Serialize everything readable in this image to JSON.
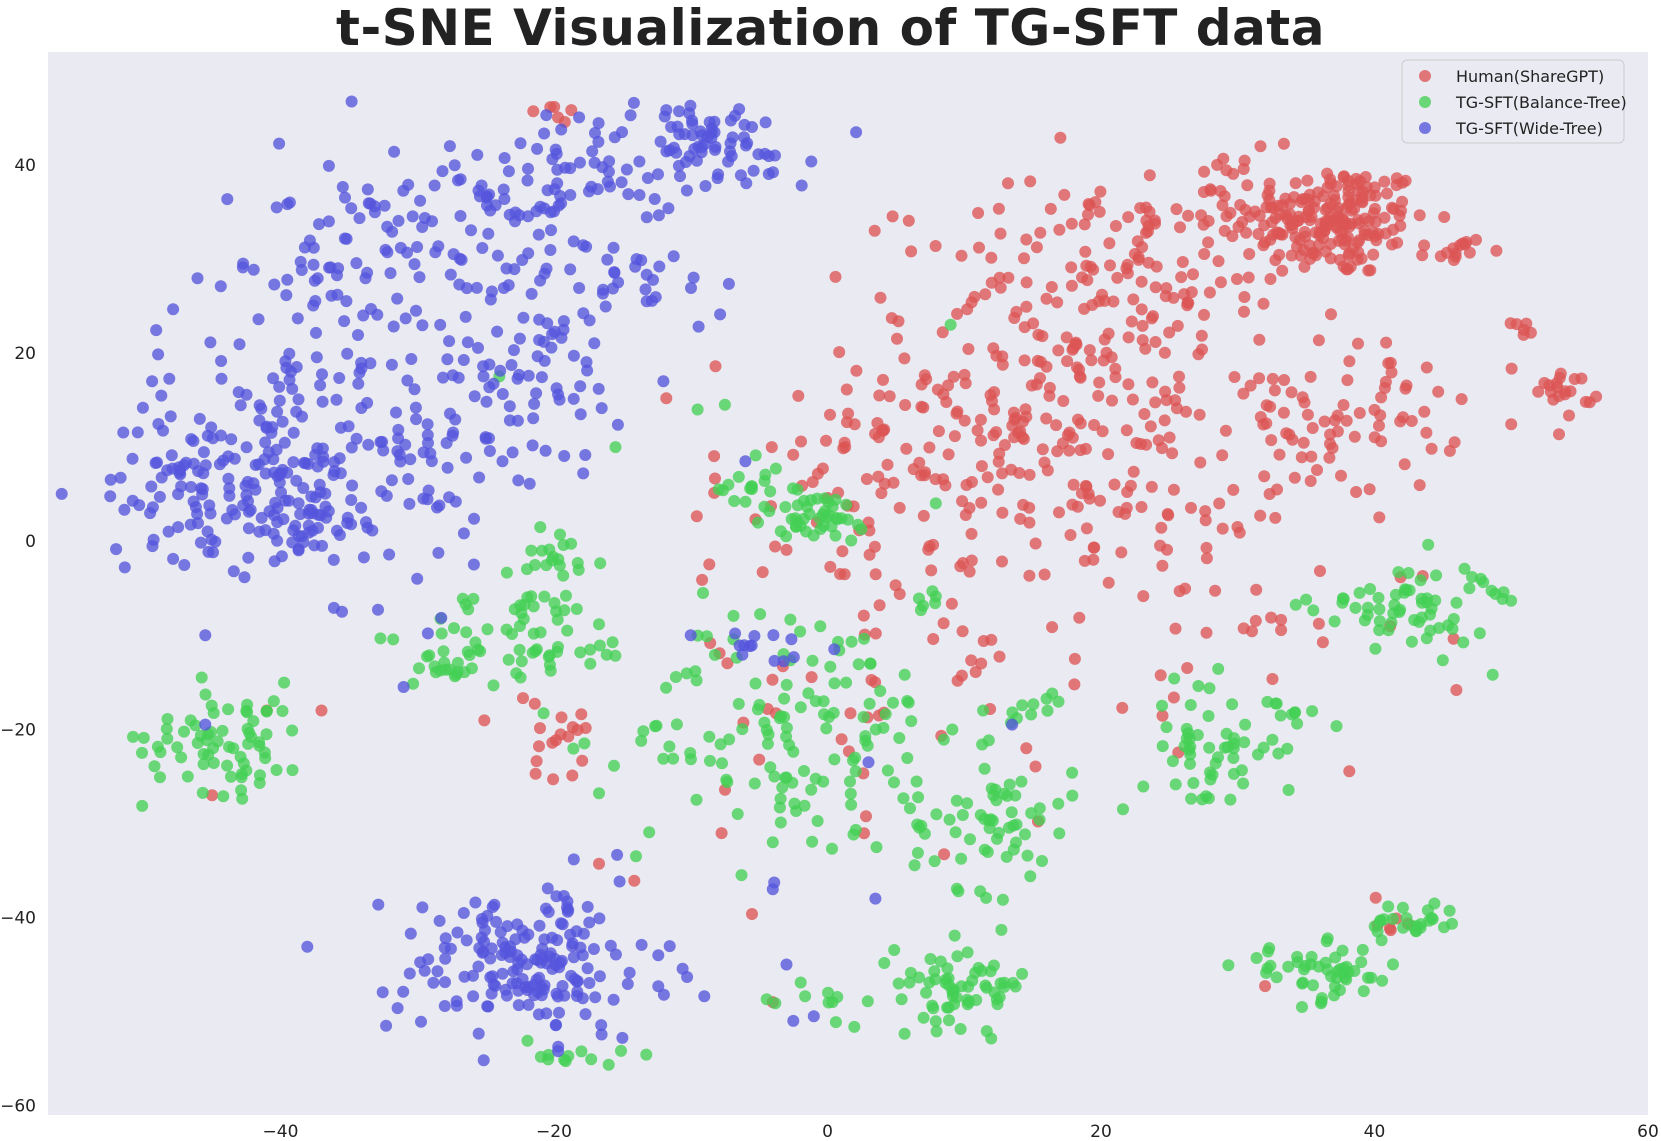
{
  "chart_data": {
    "type": "scatter",
    "title": "t-SNE Visualization of TG-SFT data",
    "xlabel": "",
    "ylabel": "",
    "xlim": [
      -57,
      60
    ],
    "ylim": [
      -61,
      52
    ],
    "xticks": [
      -40,
      -20,
      0,
      20,
      40,
      60
    ],
    "yticks": [
      -60,
      -40,
      -20,
      0,
      20,
      40
    ],
    "xtick_labels": [
      "−40",
      "−20",
      "0",
      "20",
      "40",
      "60"
    ],
    "ytick_labels": [
      "−60",
      "−40",
      "−20",
      "0",
      "20",
      "40"
    ],
    "grid": false,
    "background": "#eaeaf2",
    "legend_position": "top-right",
    "series": [
      {
        "name": "Human(ShareGPT)",
        "color": "#dd5555",
        "clusters": [
          {
            "cx": 37,
            "cy": 34,
            "sx": 3.5,
            "sy": 3,
            "n": 180
          },
          {
            "cx": 28,
            "cy": 35,
            "sx": 6,
            "sy": 3,
            "n": 60
          },
          {
            "cx": 18,
            "cy": 15,
            "sx": 8,
            "sy": 11,
            "n": 300
          },
          {
            "cx": 38,
            "cy": 13,
            "sx": 4,
            "sy": 4,
            "n": 70
          },
          {
            "cx": 54,
            "cy": 16,
            "sx": 1,
            "sy": 1.2,
            "n": 20
          },
          {
            "cx": 46,
            "cy": 31,
            "sx": 1,
            "sy": 0.7,
            "n": 14
          },
          {
            "cx": 51,
            "cy": 22.5,
            "sx": 0.5,
            "sy": 0.4,
            "n": 6
          },
          {
            "cx": 5,
            "cy": 5,
            "sx": 7,
            "sy": 9,
            "n": 80
          },
          {
            "cx": 0,
            "cy": -15,
            "sx": 8,
            "sy": 10,
            "n": 45
          },
          {
            "cx": 28,
            "cy": -10,
            "sx": 8,
            "sy": 9,
            "n": 40
          },
          {
            "cx": -20,
            "cy": -22,
            "sx": 2,
            "sy": 3,
            "n": 18
          },
          {
            "cx": -20,
            "cy": 46,
            "sx": 1.5,
            "sy": 0.8,
            "n": 6
          },
          {
            "cx": 40,
            "cy": -40,
            "sx": 2,
            "sy": 2,
            "n": 6
          },
          {
            "cx": 22,
            "cy": 28,
            "sx": 4,
            "sy": 4,
            "n": 30
          }
        ],
        "points": [
          [
            32,
            -47.3
          ],
          [
            -4,
            -49
          ],
          [
            -41,
            -18
          ],
          [
            -37,
            -18
          ],
          [
            -45,
            -27
          ]
        ]
      },
      {
        "name": "TG-SFT(Balance-Tree)",
        "color": "#44d055",
        "clusters": [
          {
            "cx": -2,
            "cy": -20,
            "sx": 6,
            "sy": 7,
            "n": 140
          },
          {
            "cx": -1,
            "cy": 2.5,
            "sx": 2.5,
            "sy": 1.5,
            "n": 45
          },
          {
            "cx": -22,
            "cy": -10,
            "sx": 4,
            "sy": 2.5,
            "n": 60
          },
          {
            "cx": -44,
            "cy": -21,
            "sx": 3,
            "sy": 3,
            "n": 70
          },
          {
            "cx": 12,
            "cy": -30,
            "sx": 3,
            "sy": 3.5,
            "n": 60
          },
          {
            "cx": 10,
            "cy": -47,
            "sx": 2.5,
            "sy": 2.2,
            "n": 65
          },
          {
            "cx": 28,
            "cy": -22,
            "sx": 2.5,
            "sy": 3.5,
            "n": 55
          },
          {
            "cx": 36,
            "cy": -46,
            "sx": 3,
            "sy": 1.5,
            "n": 50
          },
          {
            "cx": 43,
            "cy": -40.5,
            "sx": 1.8,
            "sy": 1.1,
            "n": 25
          },
          {
            "cx": 42,
            "cy": -7,
            "sx": 3.2,
            "sy": 2.5,
            "n": 60
          },
          {
            "cx": -19,
            "cy": -1.5,
            "sx": 1.5,
            "sy": 1.0,
            "n": 18
          },
          {
            "cx": -19,
            "cy": -54.5,
            "sx": 2,
            "sy": 1,
            "n": 12
          },
          {
            "cx": -6,
            "cy": 6,
            "sx": 1.3,
            "sy": 1.3,
            "n": 14
          },
          {
            "cx": 15,
            "cy": -18,
            "sx": 1.5,
            "sy": 1,
            "n": 10
          },
          {
            "cx": -28,
            "cy": -14.5,
            "sx": 1.5,
            "sy": 1.5,
            "n": 14
          },
          {
            "cx": -1,
            "cy": -49,
            "sx": 2,
            "sy": 1.5,
            "n": 10
          },
          {
            "cx": 35,
            "cy": -18,
            "sx": 1.5,
            "sy": 1,
            "n": 8
          },
          {
            "cx": 8,
            "cy": -6,
            "sx": 1,
            "sy": 0.5,
            "n": 6
          },
          {
            "cx": 48,
            "cy": -5,
            "sx": 1,
            "sy": 1,
            "n": 6
          }
        ],
        "points": [
          [
            -15.5,
            10
          ],
          [
            -24,
            17.5
          ],
          [
            -9.5,
            14
          ],
          [
            -7.5,
            14.5
          ],
          [
            9,
            23
          ],
          [
            -14,
            -33.5
          ],
          [
            -4,
            -32
          ],
          [
            -21,
            1.5
          ],
          [
            -26,
            -13.5
          ]
        ]
      },
      {
        "name": "TG-SFT(Wide-Tree)",
        "color": "#5555dd",
        "clusters": [
          {
            "cx": -45,
            "cy": 6,
            "sx": 4,
            "sy": 4,
            "n": 110
          },
          {
            "cx": -37,
            "cy": 14,
            "sx": 6,
            "sy": 9,
            "n": 160
          },
          {
            "cx": -28,
            "cy": 33,
            "sx": 6,
            "sy": 5,
            "n": 110
          },
          {
            "cx": -18,
            "cy": 40,
            "sx": 4,
            "sy": 3,
            "n": 50
          },
          {
            "cx": -9,
            "cy": 42,
            "sx": 4,
            "sy": 2.5,
            "n": 70
          },
          {
            "cx": -21,
            "cy": 18,
            "sx": 3,
            "sy": 5,
            "n": 65
          },
          {
            "cx": -14,
            "cy": 28,
            "sx": 4,
            "sy": 2,
            "n": 30
          },
          {
            "cx": -38,
            "cy": 2,
            "sx": 2,
            "sy": 2,
            "n": 40
          },
          {
            "cx": -22,
            "cy": -45,
            "sx": 5,
            "sy": 4,
            "n": 180
          },
          {
            "cx": -5,
            "cy": -11,
            "sx": 1,
            "sy": 1,
            "n": 12
          },
          {
            "cx": -27,
            "cy": 10,
            "sx": 3,
            "sy": 5,
            "n": 20
          }
        ],
        "points": [
          [
            -45.5,
            -10
          ],
          [
            -35.5,
            -7.5
          ],
          [
            -30,
            -4
          ],
          [
            -31,
            -15.5
          ],
          [
            -45.5,
            -19.5
          ],
          [
            -10,
            -10
          ],
          [
            -1,
            -50.5
          ],
          [
            -2.5,
            -51
          ],
          [
            -3,
            -45
          ],
          [
            0.5,
            -11.5
          ],
          [
            3,
            -23.5
          ],
          [
            3.5,
            -38
          ],
          [
            -4,
            -37
          ],
          [
            -15,
            -52.8
          ],
          [
            13.5,
            -19.5
          ],
          [
            -6,
            8.5
          ],
          [
            -12,
            17
          ]
        ]
      }
    ]
  }
}
